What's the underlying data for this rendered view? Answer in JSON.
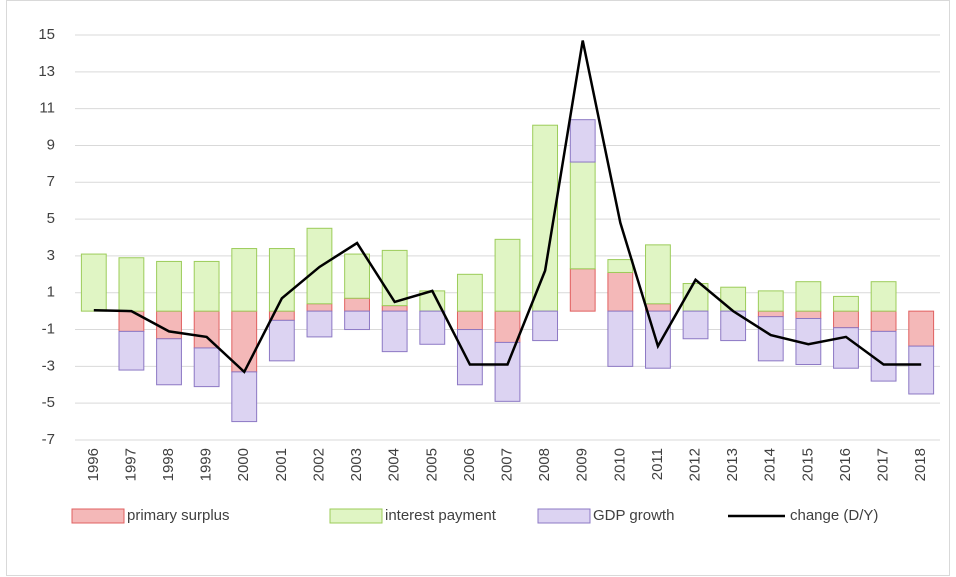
{
  "chart_data": {
    "type": "bar",
    "stacked": true,
    "categories": [
      "1996",
      "1997",
      "1998",
      "1999",
      "2000",
      "2001",
      "2002",
      "2003",
      "2004",
      "2005",
      "2006",
      "2007",
      "2008",
      "2009",
      "2010",
      "2011",
      "2012",
      "2013",
      "2014",
      "2015",
      "2016",
      "2017",
      "2018"
    ],
    "series": [
      {
        "name": "primary surplus",
        "color": "#f4b8b8",
        "stroke": "#e06060",
        "values": [
          0,
          -1.1,
          -1.5,
          -2.0,
          -3.3,
          -0.5,
          0.4,
          0.7,
          0.3,
          0,
          -1.0,
          -1.7,
          0,
          2.3,
          2.1,
          0.4,
          0,
          0,
          -0.3,
          -0.4,
          -0.9,
          -1.1,
          -1.9
        ]
      },
      {
        "name": "interest payment",
        "color": "#e0f5c4",
        "stroke": "#9ccc5a",
        "values": [
          3.1,
          2.9,
          2.7,
          2.7,
          3.4,
          3.4,
          4.1,
          2.4,
          3.0,
          1.1,
          2.0,
          3.9,
          10.1,
          5.8,
          0.7,
          3.2,
          1.5,
          1.3,
          1.1,
          1.6,
          0.8,
          1.6,
          0
        ]
      },
      {
        "name": "GDP growth",
        "color": "#dcd3f2",
        "stroke": "#8c78c4",
        "values": [
          0,
          -2.1,
          -2.5,
          -2.1,
          -2.7,
          -2.2,
          -1.4,
          -1.0,
          -2.2,
          -1.8,
          -3.0,
          -3.2,
          -1.6,
          2.3,
          -3.0,
          -3.1,
          -1.5,
          -1.6,
          -2.4,
          -2.5,
          -2.2,
          -2.7,
          -2.6
        ]
      },
      {
        "name": "change (D/Y)",
        "type": "line",
        "color": "#000000",
        "values": [
          0.05,
          0.0,
          -1.1,
          -1.4,
          -3.3,
          0.7,
          2.4,
          3.7,
          0.5,
          1.1,
          -2.9,
          -2.9,
          2.2,
          14.7,
          4.8,
          -1.9,
          1.7,
          0.0,
          -1.3,
          -1.8,
          -1.4,
          -2.9,
          -2.9
        ]
      }
    ],
    "ylim": [
      -7,
      15
    ],
    "yticks": [
      -7,
      -5,
      -3,
      -1,
      1,
      3,
      5,
      7,
      9,
      11,
      13,
      15
    ],
    "grid": true,
    "legend": "bottom"
  }
}
